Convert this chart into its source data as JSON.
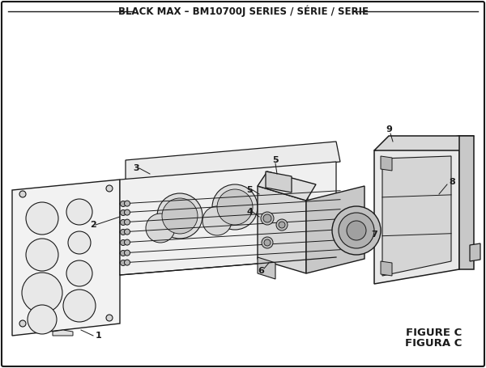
{
  "title": "BLACK MAX – BM10700J SERIES / SÉRIE / SERIE",
  "figure_label": "FIGURE C",
  "figura_label": "FIGURA C",
  "bg_color": "#ffffff",
  "border_color": "#1a1a1a",
  "line_color": "#1a1a1a",
  "title_fontsize": 8.5,
  "figure_label_fontsize": 9.5
}
